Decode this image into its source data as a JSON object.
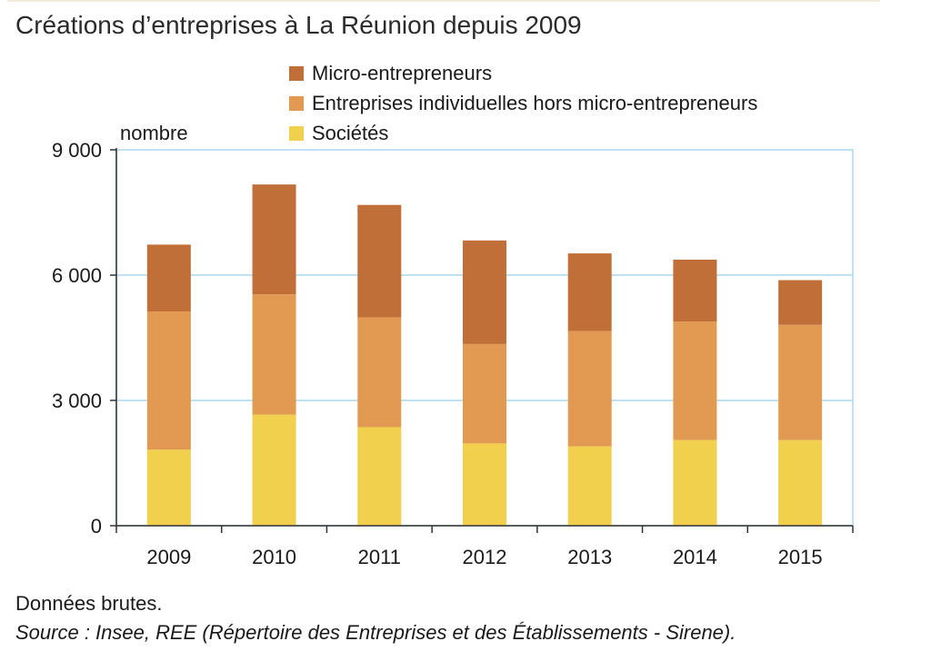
{
  "chart_data": {
    "type": "bar",
    "stacked": true,
    "title": "Créations d’entreprises à La Réunion depuis 2009",
    "ylabel": "nombre",
    "categories": [
      "2009",
      "2010",
      "2011",
      "2012",
      "2013",
      "2014",
      "2015"
    ],
    "series": [
      {
        "name": "Sociétés",
        "color": "#f0d04d",
        "values": [
          1820,
          2660,
          2360,
          1970,
          1900,
          2050,
          2050
        ]
      },
      {
        "name": "Entreprises individuelles hors micro-entrepreneurs",
        "color": "#e29a52",
        "values": [
          3310,
          2880,
          2630,
          2380,
          2760,
          2840,
          2760
        ]
      },
      {
        "name": "Micro-entrepreneurs",
        "color": "#c06f39",
        "values": [
          1600,
          2630,
          2690,
          2480,
          1860,
          1480,
          1070
        ]
      }
    ],
    "legend_order": [
      "Micro-entrepreneurs",
      "Entreprises individuelles hors micro-entrepreneurs",
      "Sociétés"
    ],
    "yticks": [
      0,
      3000,
      6000,
      9000
    ],
    "ytick_labels": [
      "0",
      "3 000",
      "6 000",
      "9 000"
    ],
    "ylim": [
      0,
      9000
    ],
    "grid": true,
    "legend_position": "top"
  },
  "notes": {
    "raw_data": "Données brutes.",
    "source": "Source : Insee, REE (Répertoire des Entreprises et des Établissements - Sirene)."
  },
  "colors": {
    "grid": "#bfe2f2",
    "axis": "#333333"
  }
}
